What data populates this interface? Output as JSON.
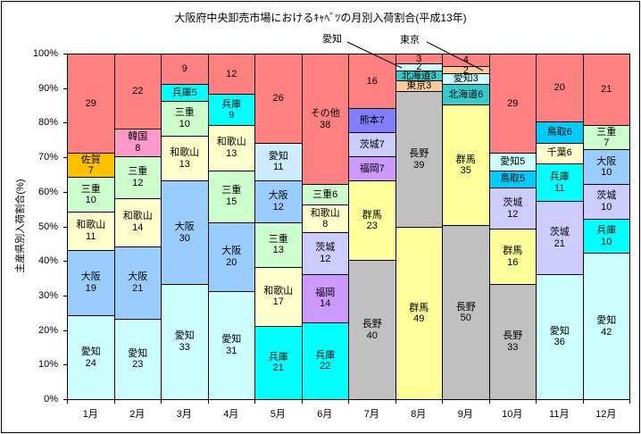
{
  "title": "大阪府中央卸売市場におけるｷｬﾍﾞﾂの月別入荷割合(平成13年)",
  "y_axis": {
    "label": "主産県別入荷割合(%)",
    "ticks": [
      "100%",
      "90%",
      "80%",
      "70%",
      "60%",
      "50%",
      "40%",
      "30%",
      "20%",
      "10%",
      "0%"
    ]
  },
  "callouts": [
    {
      "label": "愛知",
      "points_to": "8月の愛知2"
    },
    {
      "label": "東京",
      "points_to": "9月の東京2"
    }
  ],
  "colors": {
    "other_red": "#FF8080",
    "aichi": "#CCFFFF",
    "aichi_may": "#CCECFF",
    "osaka": "#99CCFF",
    "wakayama": "#FFFFCC",
    "mie": "#CCFFCC",
    "saga": "#FFC000",
    "kankoku": "#FF99CC",
    "hyogo": "#00FFFF",
    "ibaraki": "#CCCCFF",
    "fukuoka": "#CC99FF",
    "kumamoto": "#8080FF",
    "nagano": "#C0C0C0",
    "gunma": "#FFFF99",
    "hokkaido": "#33CCCC",
    "tokyo": "#FFCC99",
    "tottori": "#00CCFF"
  },
  "chart_data": {
    "type": "bar",
    "stacked": true,
    "unit": "%",
    "ylim": [
      0,
      100
    ],
    "grid": false,
    "title": "大阪府中央卸売市場におけるｷｬﾍﾞﾂの月別入荷割合(平成13年)",
    "ylabel": "主産県別入荷割合(%)",
    "categories": [
      "1月",
      "2月",
      "3月",
      "4月",
      "5月",
      "6月",
      "7月",
      "8月",
      "9月",
      "10月",
      "11月",
      "12月"
    ],
    "months": [
      {
        "month": "1月",
        "segments": [
          {
            "name": "",
            "value": 29,
            "label": "29",
            "color": "#FF8080"
          },
          {
            "name": "佐賀",
            "value": 7,
            "label": "佐賀\n7",
            "color": "#FFC000"
          },
          {
            "name": "三重",
            "value": 10,
            "label": "三重\n10",
            "color": "#CCFFCC"
          },
          {
            "name": "和歌山",
            "value": 11,
            "label": "和歌山\n11",
            "color": "#FFFFCC"
          },
          {
            "name": "大阪",
            "value": 19,
            "label": "大阪\n19",
            "color": "#99CCFF"
          },
          {
            "name": "愛知",
            "value": 24,
            "label": "愛知\n24",
            "color": "#CCFFFF"
          }
        ]
      },
      {
        "month": "2月",
        "segments": [
          {
            "name": "",
            "value": 22,
            "label": "22",
            "color": "#FF8080"
          },
          {
            "name": "韓国",
            "value": 8,
            "label": "韓国\n8",
            "color": "#FF99CC"
          },
          {
            "name": "三重",
            "value": 12,
            "label": "三重\n12",
            "color": "#CCFFCC"
          },
          {
            "name": "和歌山",
            "value": 14,
            "label": "和歌山\n14",
            "color": "#FFFFCC"
          },
          {
            "name": "大阪",
            "value": 21,
            "label": "大阪\n21",
            "color": "#99CCFF"
          },
          {
            "name": "愛知",
            "value": 23,
            "label": "愛知\n23",
            "color": "#CCFFFF"
          }
        ]
      },
      {
        "month": "3月",
        "segments": [
          {
            "name": "",
            "value": 9,
            "label": "9",
            "color": "#FF8080"
          },
          {
            "name": "兵庫",
            "value": 5,
            "label": "兵庫5",
            "color": "#00FFFF"
          },
          {
            "name": "三重",
            "value": 10,
            "label": "三重\n10",
            "color": "#CCFFCC"
          },
          {
            "name": "和歌山",
            "value": 13,
            "label": "和歌山\n13",
            "color": "#FFFFCC"
          },
          {
            "name": "大阪",
            "value": 30,
            "label": "大阪\n30",
            "color": "#99CCFF"
          },
          {
            "name": "愛知",
            "value": 33,
            "label": "愛知\n33",
            "color": "#CCFFFF"
          }
        ]
      },
      {
        "month": "4月",
        "segments": [
          {
            "name": "",
            "value": 12,
            "label": "12",
            "color": "#FF8080"
          },
          {
            "name": "兵庫",
            "value": 9,
            "label": "兵庫\n9",
            "color": "#00FFFF"
          },
          {
            "name": "和歌山",
            "value": 13,
            "label": "和歌山\n13",
            "color": "#FFFFCC"
          },
          {
            "name": "三重",
            "value": 15,
            "label": "三重\n15",
            "color": "#CCFFCC"
          },
          {
            "name": "大阪",
            "value": 20,
            "label": "大阪\n20",
            "color": "#99CCFF"
          },
          {
            "name": "愛知",
            "value": 31,
            "label": "愛知\n31",
            "color": "#CCFFFF"
          }
        ]
      },
      {
        "month": "5月",
        "segments": [
          {
            "name": "",
            "value": 26,
            "label": "26",
            "color": "#FF8080"
          },
          {
            "name": "愛知",
            "value": 11,
            "label": "愛知\n11",
            "color": "#CCECFF"
          },
          {
            "name": "大阪",
            "value": 12,
            "label": "大阪\n12",
            "color": "#99CCFF"
          },
          {
            "name": "三重",
            "value": 13,
            "label": "三重\n13",
            "color": "#CCFFCC"
          },
          {
            "name": "和歌山",
            "value": 17,
            "label": "和歌山\n17",
            "color": "#FFFFCC"
          },
          {
            "name": "兵庫",
            "value": 21,
            "label": "兵庫\n21",
            "color": "#00FFFF"
          }
        ]
      },
      {
        "month": "6月",
        "segments": [
          {
            "name": "その他",
            "value": 38,
            "label": "その他\n38",
            "color": "#FF8080"
          },
          {
            "name": "三重",
            "value": 6,
            "label": "三重6",
            "color": "#CCFFCC"
          },
          {
            "name": "和歌山",
            "value": 8,
            "label": "和歌山\n8",
            "color": "#FFFFCC"
          },
          {
            "name": "茨城",
            "value": 12,
            "label": "茨城\n12",
            "color": "#CCCCFF"
          },
          {
            "name": "福岡",
            "value": 14,
            "label": "福岡\n14",
            "color": "#CC99FF"
          },
          {
            "name": "兵庫",
            "value": 22,
            "label": "兵庫\n22",
            "color": "#00FFFF"
          }
        ]
      },
      {
        "month": "7月",
        "segments": [
          {
            "name": "",
            "value": 16,
            "label": "16",
            "color": "#FF8080"
          },
          {
            "name": "熊本",
            "value": 7,
            "label": "熊本7",
            "color": "#8080FF"
          },
          {
            "name": "茨城",
            "value": 7,
            "label": "茨城7",
            "color": "#CCCCFF"
          },
          {
            "name": "福岡",
            "value": 7,
            "label": "福岡7",
            "color": "#CC99FF"
          },
          {
            "name": "群馬",
            "value": 23,
            "label": "群馬\n23",
            "color": "#FFFF99"
          },
          {
            "name": "長野",
            "value": 40,
            "label": "長野\n40",
            "color": "#C0C0C0"
          }
        ]
      },
      {
        "month": "8月",
        "segments": [
          {
            "name": "",
            "value": 3,
            "label": "3",
            "color": "#FF8080"
          },
          {
            "name": "愛知",
            "value": 2,
            "label": "2",
            "color": "#CCFFFF"
          },
          {
            "name": "北海道",
            "value": 3,
            "label": "北海道3",
            "color": "#33CCCC"
          },
          {
            "name": "東京",
            "value": 3,
            "label": "東京3",
            "color": "#FFCC99"
          },
          {
            "name": "長野",
            "value": 39,
            "label": "長野\n39",
            "color": "#C0C0C0"
          },
          {
            "name": "群馬",
            "value": 49,
            "label": "群馬\n49",
            "color": "#FFFF99"
          }
        ]
      },
      {
        "month": "9月",
        "segments": [
          {
            "name": "",
            "value": 4,
            "label": "4",
            "color": "#FF8080"
          },
          {
            "name": "東京",
            "value": 2,
            "label": "2",
            "color": "#FFCC99"
          },
          {
            "name": "愛知",
            "value": 3,
            "label": "愛知3",
            "color": "#CCFFFF"
          },
          {
            "name": "北海道",
            "value": 6,
            "label": "北海道6",
            "color": "#33CCCC"
          },
          {
            "name": "群馬",
            "value": 35,
            "label": "群馬\n35",
            "color": "#FFFF99"
          },
          {
            "name": "長野",
            "value": 50,
            "label": "長野\n50",
            "color": "#C0C0C0"
          }
        ]
      },
      {
        "month": "10月",
        "segments": [
          {
            "name": "",
            "value": 29,
            "label": "29",
            "color": "#FF8080"
          },
          {
            "name": "愛知",
            "value": 5,
            "label": "愛知5",
            "color": "#CCFFFF"
          },
          {
            "name": "鳥取",
            "value": 5,
            "label": "鳥取5",
            "color": "#00CCFF"
          },
          {
            "name": "茨城",
            "value": 12,
            "label": "茨城\n12",
            "color": "#CCCCFF"
          },
          {
            "name": "群馬",
            "value": 16,
            "label": "群馬\n16",
            "color": "#FFFF99"
          },
          {
            "name": "長野",
            "value": 33,
            "label": "長野\n33",
            "color": "#C0C0C0"
          }
        ]
      },
      {
        "month": "11月",
        "segments": [
          {
            "name": "",
            "value": 20,
            "label": "20",
            "color": "#FF8080"
          },
          {
            "name": "鳥取",
            "value": 6,
            "label": "鳥取6",
            "color": "#00CCFF"
          },
          {
            "name": "千葉",
            "value": 6,
            "label": "千葉6",
            "color": "#FFFFCC"
          },
          {
            "name": "兵庫",
            "value": 11,
            "label": "兵庫\n11",
            "color": "#00FFFF"
          },
          {
            "name": "茨城",
            "value": 21,
            "label": "茨城\n21",
            "color": "#CCCCFF"
          },
          {
            "name": "愛知",
            "value": 36,
            "label": "愛知\n36",
            "color": "#CCFFFF"
          }
        ]
      },
      {
        "month": "12月",
        "segments": [
          {
            "name": "",
            "value": 21,
            "label": "21",
            "color": "#FF8080"
          },
          {
            "name": "三重",
            "value": 7,
            "label": "三重\n7",
            "color": "#CCFFCC"
          },
          {
            "name": "大阪",
            "value": 10,
            "label": "大阪\n10",
            "color": "#99CCFF"
          },
          {
            "name": "茨城",
            "value": 10,
            "label": "茨城\n10",
            "color": "#CCCCFF"
          },
          {
            "name": "兵庫",
            "value": 10,
            "label": "兵庫\n10",
            "color": "#00FFFF"
          },
          {
            "name": "愛知",
            "value": 42,
            "label": "愛知\n42",
            "color": "#CCFFFF"
          }
        ]
      }
    ]
  }
}
